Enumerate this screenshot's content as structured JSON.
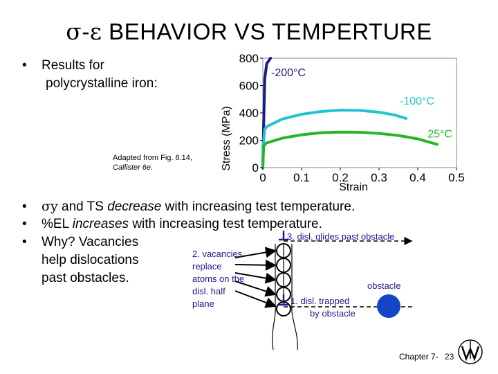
{
  "title": {
    "symbol_part": "σ-ε",
    "text_part": " BEHAVIOR VS TEMPERTURE"
  },
  "bullet_results": {
    "line1": "Results for",
    "line2": "polycrystalline iron:"
  },
  "caption": {
    "line1": "Adapted from Fig. 6.14,",
    "line2": "Callister 6e."
  },
  "bullets": [
    {
      "prefix": "σy",
      "text": " and TS ",
      "em": "decrease",
      "rest": " with increasing test temperature."
    },
    {
      "prefix": "%EL ",
      "em": "increases",
      "rest": " with increasing test temperature."
    },
    {
      "line1": "Why?  Vacancies",
      "line2": "help dislocations",
      "line3": "past obstacles."
    }
  ],
  "chart_data": {
    "type": "line",
    "xlabel": "Strain",
    "ylabel": "Stress (MPa)",
    "xlim": [
      0,
      0.5
    ],
    "ylim": [
      0,
      800
    ],
    "xticks": [
      "0",
      "0.1",
      "0.2",
      "0.3",
      "0.4",
      "0.5"
    ],
    "yticks": [
      "0",
      "200",
      "400",
      "600",
      "800"
    ],
    "series": [
      {
        "name": "-200°C",
        "color": "#1a1a8c",
        "x": [
          0,
          0.002,
          0.005,
          0.01,
          0.02
        ],
        "y": [
          0,
          300,
          650,
          760,
          800
        ]
      },
      {
        "name": "-100°C",
        "color": "#22c4d0",
        "x": [
          0,
          0.002,
          0.005,
          0.01,
          0.05,
          0.1,
          0.15,
          0.2,
          0.25,
          0.3,
          0.34,
          0.37
        ],
        "y": [
          0,
          200,
          280,
          300,
          355,
          390,
          410,
          420,
          418,
          405,
          385,
          360
        ]
      },
      {
        "name": "25°C",
        "color": "#28b428",
        "x": [
          0,
          0.002,
          0.005,
          0.01,
          0.05,
          0.1,
          0.15,
          0.2,
          0.25,
          0.3,
          0.35,
          0.4,
          0.45
        ],
        "y": [
          0,
          150,
          170,
          180,
          215,
          240,
          255,
          260,
          258,
          250,
          235,
          210,
          170
        ]
      }
    ]
  },
  "diagram": {
    "label_glide": "3.  disl. glides past obstacle",
    "label_vacancies": [
      "2. vacancies",
      "replace",
      "atoms on the",
      "disl. half",
      "plane"
    ],
    "label_obstacle": "obstacle",
    "label_trapped": [
      "1. disl. trapped",
      "by obstacle"
    ]
  },
  "footer": {
    "chapter": "Chapter 7-",
    "page": "23"
  }
}
